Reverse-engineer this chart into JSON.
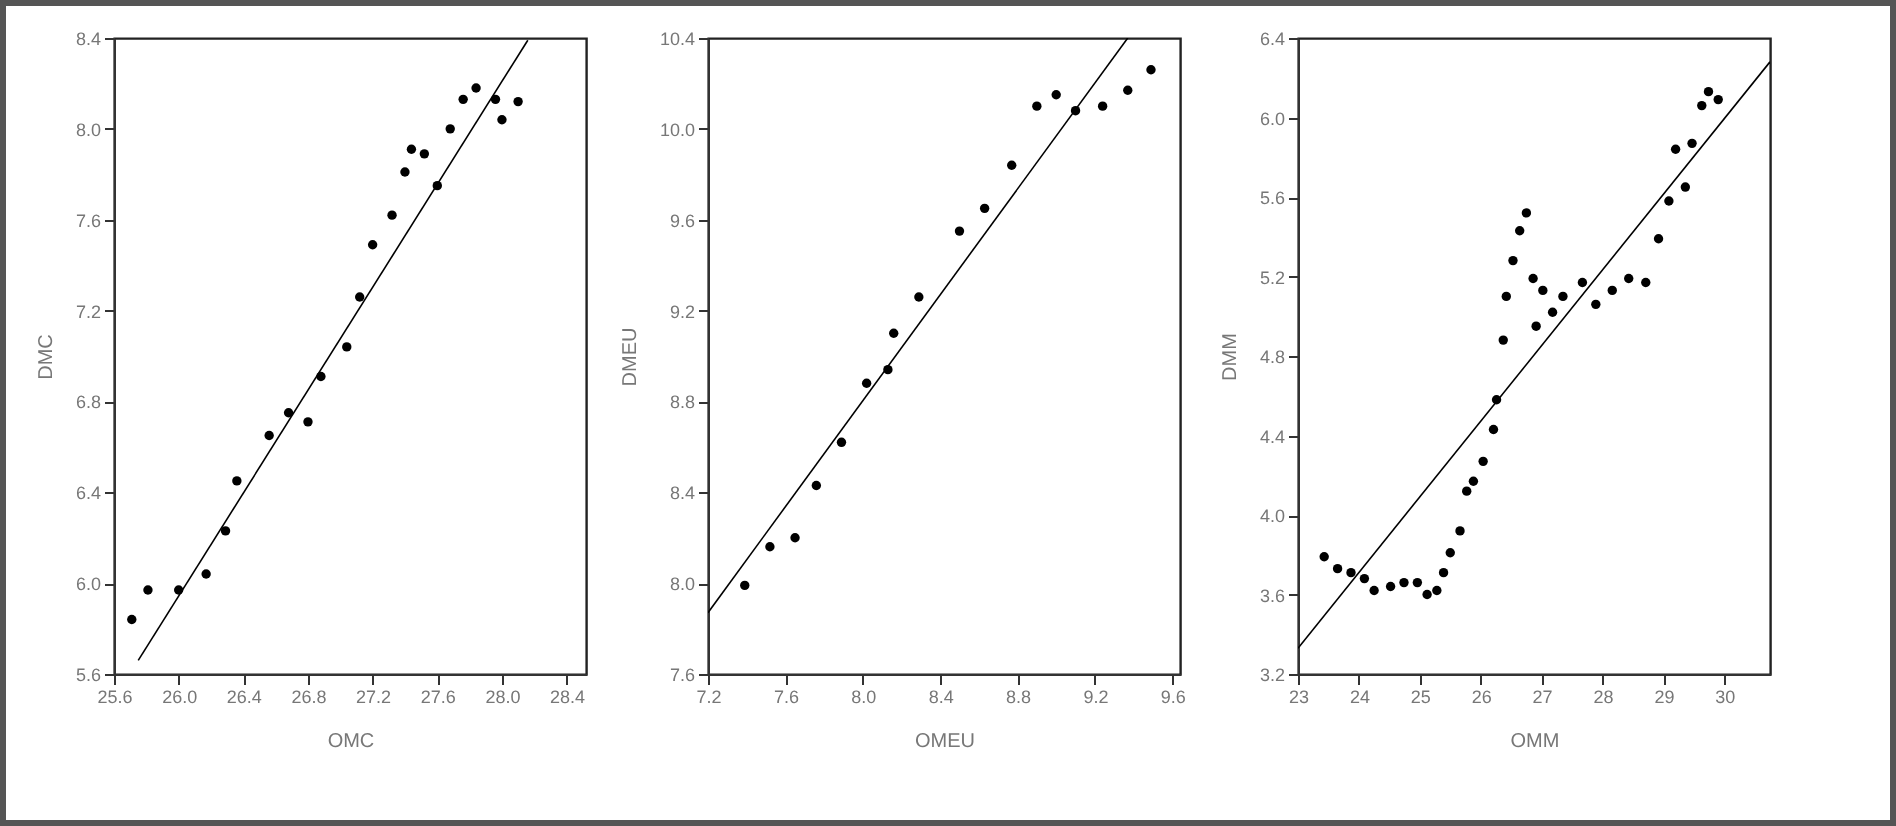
{
  "chart_data": [
    {
      "type": "scatter",
      "xlabel": "OMC",
      "ylabel": "DMC",
      "xlim": [
        25.6,
        28.52
      ],
      "ylim": [
        5.6,
        8.4
      ],
      "xticks": [
        25.6,
        {
          "value": 26,
          "label": "26.0"
        },
        26.4,
        26.8,
        27.2,
        27.6,
        {
          "value": 28,
          "label": "28.0"
        },
        28.4
      ],
      "yticks": [
        5.6,
        {
          "value": 6,
          "label": "6.0"
        },
        6.4,
        6.8,
        7.2,
        7.6,
        {
          "value": 8,
          "label": "8.0"
        },
        8.4
      ],
      "series": [
        {
          "color": "#000000",
          "marker": "circle",
          "x": [
            25.71,
            25.81,
            26.0,
            26.17,
            26.29,
            26.36,
            26.56,
            26.68,
            26.8,
            26.88,
            27.04,
            27.12,
            27.2,
            27.32,
            27.4,
            27.44,
            27.52,
            27.6,
            27.68,
            27.76,
            27.84,
            27.96,
            28.0,
            28.1
          ],
          "values": [
            5.84,
            5.97,
            5.97,
            6.04,
            6.23,
            6.45,
            6.65,
            6.75,
            6.71,
            6.91,
            7.04,
            7.26,
            7.49,
            7.62,
            7.81,
            7.91,
            7.89,
            7.75,
            8.0,
            8.13,
            8.18,
            8.13,
            8.04,
            8.12
          ]
        },
        {
          "type": "line",
          "color": "#000000",
          "x": [
            25.75,
            28.16
          ],
          "values": [
            5.66,
            8.39
          ]
        }
      ]
    },
    {
      "type": "scatter",
      "xlabel": "OMEU",
      "ylabel": "DMEU",
      "xlim": [
        7.2,
        9.64
      ],
      "ylim": [
        7.6,
        10.4
      ],
      "xticks": [
        7.2,
        7.6,
        {
          "value": 8,
          "label": "8.0"
        },
        8.4,
        8.8,
        9.2,
        9.6
      ],
      "yticks": [
        7.6,
        {
          "value": 8,
          "label": "8.0"
        },
        8.4,
        8.8,
        9.2,
        9.6,
        {
          "value": 10,
          "label": "10.0"
        },
        10.4
      ],
      "series": [
        {
          "color": "#000000",
          "marker": "circle",
          "x": [
            7.39,
            7.52,
            7.65,
            7.76,
            7.89,
            8.02,
            8.13,
            8.16,
            8.29,
            8.5,
            8.63,
            8.77,
            8.9,
            9.0,
            9.1,
            9.24,
            9.37,
            9.49
          ],
          "values": [
            7.99,
            8.16,
            8.2,
            8.43,
            8.62,
            8.88,
            8.94,
            9.1,
            9.26,
            9.55,
            9.65,
            9.84,
            10.1,
            10.15,
            10.08,
            10.1,
            10.17,
            10.26
          ]
        },
        {
          "type": "line",
          "color": "#000000",
          "x": [
            7.2,
            9.37
          ],
          "values": [
            7.87,
            10.4
          ]
        }
      ]
    },
    {
      "type": "scatter",
      "xlabel": "OMM",
      "ylabel": "DMM",
      "xlim": [
        23,
        30.75
      ],
      "ylim": [
        3.2,
        6.4
      ],
      "xticks": [
        23,
        24,
        25,
        26,
        27,
        28,
        29,
        30
      ],
      "yticks": [
        3.2,
        3.6,
        {
          "value": 4,
          "label": "4.0"
        },
        4.4,
        4.8,
        5.2,
        5.6,
        {
          "value": 6,
          "label": "6.0"
        },
        6.4
      ],
      "series": [
        {
          "color": "#000000",
          "marker": "circle",
          "x": [
            23.43,
            23.65,
            23.87,
            24.09,
            24.25,
            24.52,
            24.74,
            24.96,
            25.12,
            25.28,
            25.39,
            25.5,
            25.66,
            25.77,
            25.88,
            26.04,
            26.21,
            26.26,
            26.37,
            26.42,
            26.53,
            26.64,
            26.75,
            26.86,
            26.91,
            27.02,
            27.18,
            27.35,
            27.67,
            27.89,
            28.16,
            28.43,
            28.71,
            28.92,
            29.09,
            29.2,
            29.36,
            29.47,
            29.63,
            29.74,
            29.9
          ],
          "values": [
            3.79,
            3.73,
            3.71,
            3.68,
            3.62,
            3.64,
            3.66,
            3.66,
            3.6,
            3.62,
            3.71,
            3.81,
            3.92,
            4.12,
            4.17,
            4.27,
            4.43,
            4.58,
            4.88,
            5.1,
            5.28,
            5.43,
            5.52,
            5.19,
            4.95,
            5.13,
            5.02,
            5.1,
            5.17,
            5.06,
            5.13,
            5.19,
            5.17,
            5.39,
            5.58,
            5.84,
            5.65,
            5.87,
            6.06,
            6.13,
            6.09
          ]
        },
        {
          "type": "line",
          "color": "#000000",
          "x": [
            23,
            30.75
          ],
          "values": [
            3.33,
            6.28
          ]
        }
      ]
    }
  ]
}
